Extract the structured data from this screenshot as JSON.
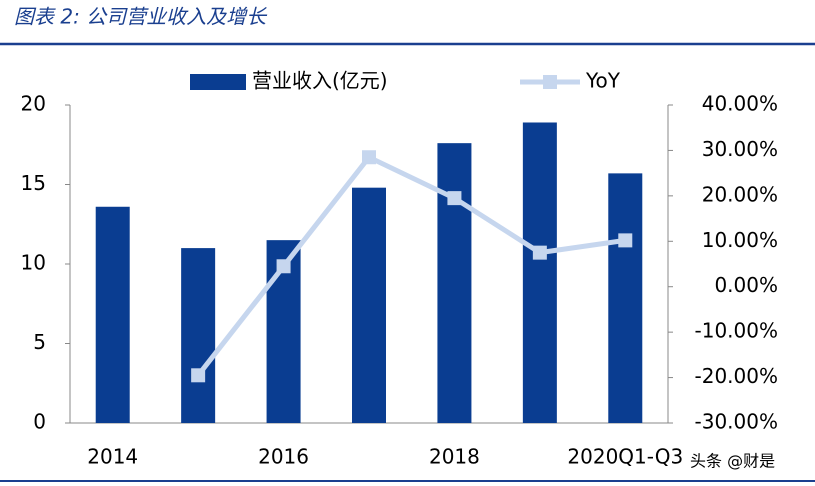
{
  "chart_data": {
    "type": "bar_line",
    "title": "图表 2: 公司营业收入及增长",
    "watermark": "头条 @财是",
    "categories": [
      "2014",
      null,
      "2016",
      null,
      "2018",
      null,
      "2020Q1-Q3"
    ],
    "series": [
      {
        "name": "营业收入(亿元)",
        "type": "bar",
        "color": "#0a3d91",
        "values": [
          13.6,
          11.0,
          11.5,
          14.8,
          17.6,
          18.9,
          15.7
        ]
      },
      {
        "name": "YoY",
        "type": "line",
        "axis": "y2",
        "color": "#c6d6ee",
        "values": [
          null,
          -19.5,
          4.5,
          28.5,
          19.5,
          7.5,
          10.2
        ]
      }
    ],
    "ylim": [
      0,
      20
    ],
    "yticks": [
      0,
      5,
      10,
      15,
      20
    ],
    "y2lim": [
      -30,
      40
    ],
    "y2ticks": [
      {
        "value": -30,
        "label": "-30.00%"
      },
      {
        "value": -20,
        "label": "-20.00%"
      },
      {
        "value": -10,
        "label": "-10.00%"
      },
      {
        "value": 0,
        "label": "0.00%"
      },
      {
        "value": 10,
        "label": "10.00%"
      },
      {
        "value": 20,
        "label": "20.00%"
      },
      {
        "value": 30,
        "label": "30.00%"
      },
      {
        "value": 40,
        "label": "40.00%"
      }
    ]
  }
}
